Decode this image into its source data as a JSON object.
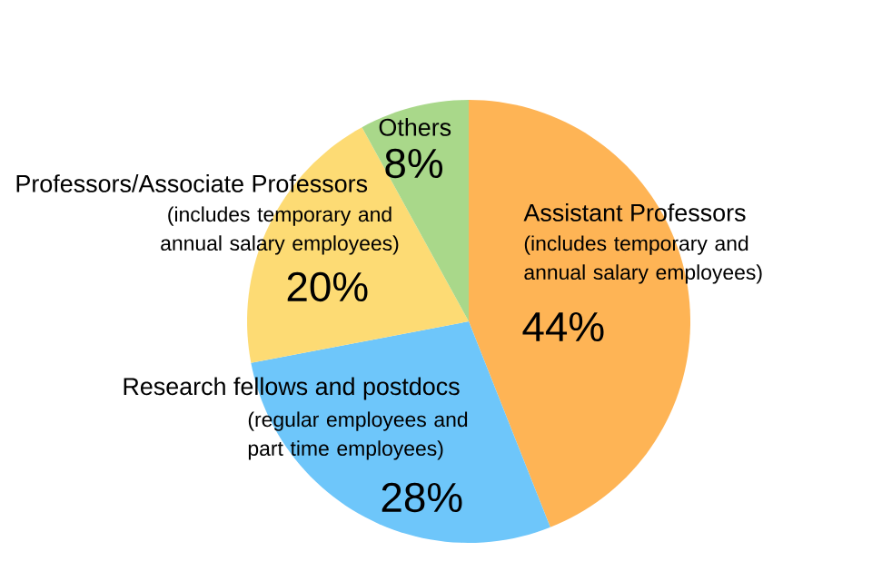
{
  "chart_data": {
    "type": "pie",
    "categories": [
      "Assistant Professors",
      "Research fellows and postdocs",
      "Professors/Associate Professors",
      "Others"
    ],
    "values": [
      44,
      28,
      20,
      8
    ],
    "value_labels": [
      "44%",
      "28%",
      "20%",
      "8%"
    ],
    "colors": [
      "#feb455",
      "#6ec6fa",
      "#fddb74",
      "#a9d88a"
    ],
    "annotations": [
      "(includes temporary and annual salary employees)",
      "(regular employees and part time employees)",
      "(includes temporary and annual salary employees)"
    ]
  }
}
